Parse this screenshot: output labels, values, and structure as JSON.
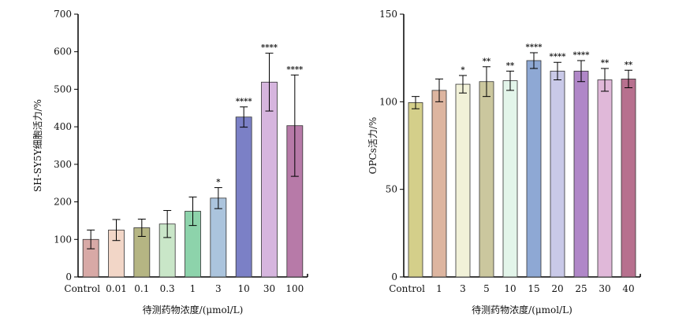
{
  "chart_data": [
    {
      "type": "bar",
      "xlabel": "待测药物浓度/(μmol/L)",
      "ylabel": "SH-SY5Y细胞活力/%",
      "ylim": [
        0,
        700
      ],
      "yticks": [
        0,
        100,
        200,
        300,
        400,
        500,
        600,
        700
      ],
      "categories": [
        "Control",
        "0.01",
        "0.1",
        "0.3",
        "1",
        "3",
        "10",
        "30",
        "100"
      ],
      "values": [
        100,
        125,
        131,
        141,
        175,
        210,
        426,
        519,
        403
      ],
      "errors": [
        25,
        28,
        23,
        36,
        38,
        28,
        27,
        77,
        135
      ],
      "significance": [
        "",
        "",
        "",
        "",
        "",
        "*",
        "****",
        "****",
        "****"
      ],
      "colors": [
        "#d8a9a6",
        "#f2d6c7",
        "#b5b583",
        "#c9e6c8",
        "#8dd3ab",
        "#abc4dd",
        "#7b80c6",
        "#d6b5de",
        "#b77aa8"
      ]
    },
    {
      "type": "bar",
      "xlabel": "待测药物浓度/(μmol/L)",
      "ylabel": "OPCs活力/%",
      "ylim": [
        0,
        150
      ],
      "yticks": [
        0,
        50,
        100,
        150
      ],
      "categories": [
        "Control",
        "1",
        "3",
        "5",
        "10",
        "15",
        "20",
        "25",
        "30",
        "40"
      ],
      "values": [
        99.5,
        106.5,
        110,
        111.5,
        112,
        123.5,
        117.5,
        117.5,
        112.5,
        113
      ],
      "errors": [
        3.5,
        6.5,
        5,
        8.5,
        5.5,
        4.5,
        5,
        6,
        6.5,
        5
      ],
      "significance": [
        "",
        "",
        "*",
        "**",
        "**",
        "****",
        "****",
        "****",
        "**",
        "**"
      ],
      "colors": [
        "#d4cf8a",
        "#ddb5a0",
        "#f1f1d8",
        "#cbc79e",
        "#e3f5ea",
        "#8ea8d4",
        "#c9c9e8",
        "#b087c8",
        "#e0b8d9",
        "#b7708e"
      ]
    }
  ]
}
